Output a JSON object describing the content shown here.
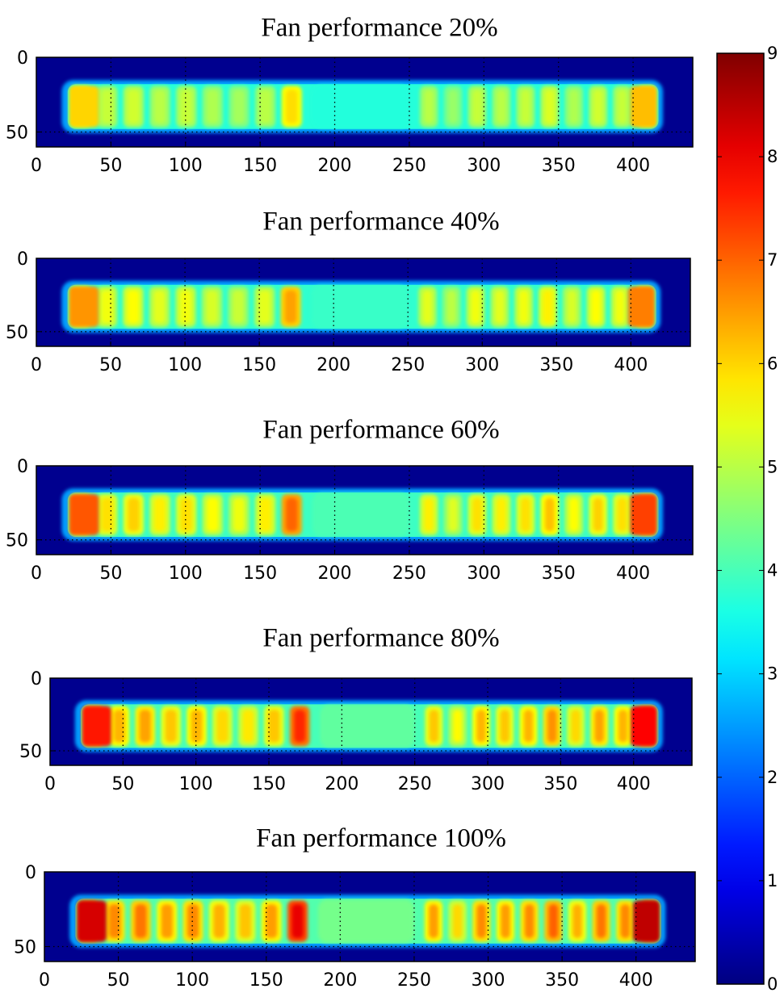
{
  "chart_data": {
    "type": "heatmap",
    "colormap": "jet",
    "colorbar": {
      "range": [
        0,
        9
      ],
      "ticks": [
        "0",
        "1",
        "2",
        "3",
        "4",
        "5",
        "6",
        "7",
        "8",
        "9"
      ],
      "placement": "right"
    },
    "panels": [
      {
        "title": "Fan performance 20%",
        "xlim": [
          0,
          440
        ],
        "ylim": [
          60,
          0
        ],
        "xticks": [
          "0",
          "50",
          "100",
          "150",
          "200",
          "250",
          "300",
          "350",
          "400"
        ],
        "yticks": [
          "0",
          "50"
        ],
        "fan_level": 0.2
      },
      {
        "title": "Fan performance 40%",
        "xlim": [
          0,
          440
        ],
        "ylim": [
          60,
          0
        ],
        "xticks": [
          "0",
          "50",
          "100",
          "150",
          "200",
          "250",
          "300",
          "350",
          "400"
        ],
        "yticks": [
          "0",
          "50"
        ],
        "fan_level": 0.4
      },
      {
        "title": "Fan performance 60%",
        "xlim": [
          0,
          440
        ],
        "ylim": [
          60,
          0
        ],
        "xticks": [
          "0",
          "50",
          "100",
          "150",
          "200",
          "250",
          "300",
          "350",
          "400"
        ],
        "yticks": [
          "0",
          "50"
        ],
        "fan_level": 0.6
      },
      {
        "title": "Fan performance 80%",
        "xlim": [
          0,
          440
        ],
        "ylim": [
          60,
          0
        ],
        "xticks": [
          "0",
          "50",
          "100",
          "150",
          "200",
          "250",
          "300",
          "350",
          "400"
        ],
        "yticks": [
          "0",
          "50"
        ],
        "fan_level": 0.8
      },
      {
        "title": "Fan performance 100%",
        "xlim": [
          0,
          440
        ],
        "ylim": [
          60,
          0
        ],
        "xticks": [
          "0",
          "50",
          "100",
          "150",
          "200",
          "250",
          "300",
          "350",
          "400"
        ],
        "yticks": [
          "0",
          "50"
        ],
        "fan_level": 1.0
      }
    ]
  }
}
